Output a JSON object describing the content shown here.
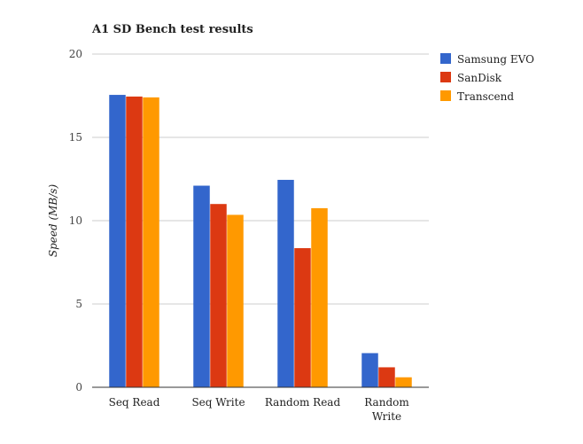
{
  "chart_data": {
    "type": "bar",
    "title": "A1 SD Bench test results",
    "xlabel": "",
    "ylabel": "Speed (MB/s)",
    "ylim": [
      0,
      20
    ],
    "yticks": [
      "0",
      "5",
      "10",
      "15",
      "20"
    ],
    "grid": true,
    "legend": "right",
    "categories": [
      [
        "Seq Read"
      ],
      [
        "Seq Write"
      ],
      [
        "Random Read"
      ],
      [
        "Random",
        "Write"
      ]
    ],
    "series": [
      {
        "name": "Samsung EVO",
        "color": "#3366cc",
        "values": [
          17.55,
          12.1,
          12.45,
          2.05
        ]
      },
      {
        "name": "SanDisk",
        "color": "#dc3912",
        "values": [
          17.45,
          11.0,
          8.35,
          1.2
        ]
      },
      {
        "name": "Transcend",
        "color": "#ff9900",
        "values": [
          17.4,
          10.35,
          10.75,
          0.6
        ]
      }
    ]
  }
}
